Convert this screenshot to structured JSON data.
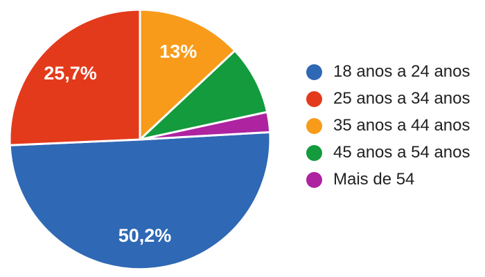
{
  "chart_data": {
    "type": "pie",
    "title": "",
    "legend_position": "right",
    "background_color": "#ffffff",
    "separator_color": "#ffffff",
    "label_text_color": "#ffffff",
    "legend_text_color": "#212121",
    "start_angle_clock_deg": 86.76,
    "slices": [
      {
        "key": "18-24",
        "legend_label": "18 anos a 24 anos",
        "value": 50.2,
        "pct_label": "50,2%",
        "label_visible": true,
        "color": "#2F68B4"
      },
      {
        "key": "25-34",
        "legend_label": "25 anos a 34 anos",
        "value": 25.7,
        "pct_label": "25,7%",
        "label_visible": true,
        "color": "#E33A1C"
      },
      {
        "key": "35-44",
        "legend_label": "35 anos a 44 anos",
        "value": 13.0,
        "pct_label": "13%",
        "label_visible": true,
        "color": "#F89B1B"
      },
      {
        "key": "45-54",
        "legend_label": "45 anos a 54 anos",
        "value": 8.6,
        "pct_label": "",
        "label_visible": false,
        "color": "#139B3D"
      },
      {
        "key": "54plus",
        "legend_label": "Mais de 54",
        "value": 2.5,
        "pct_label": "",
        "label_visible": false,
        "color": "#AD23A0"
      }
    ]
  }
}
